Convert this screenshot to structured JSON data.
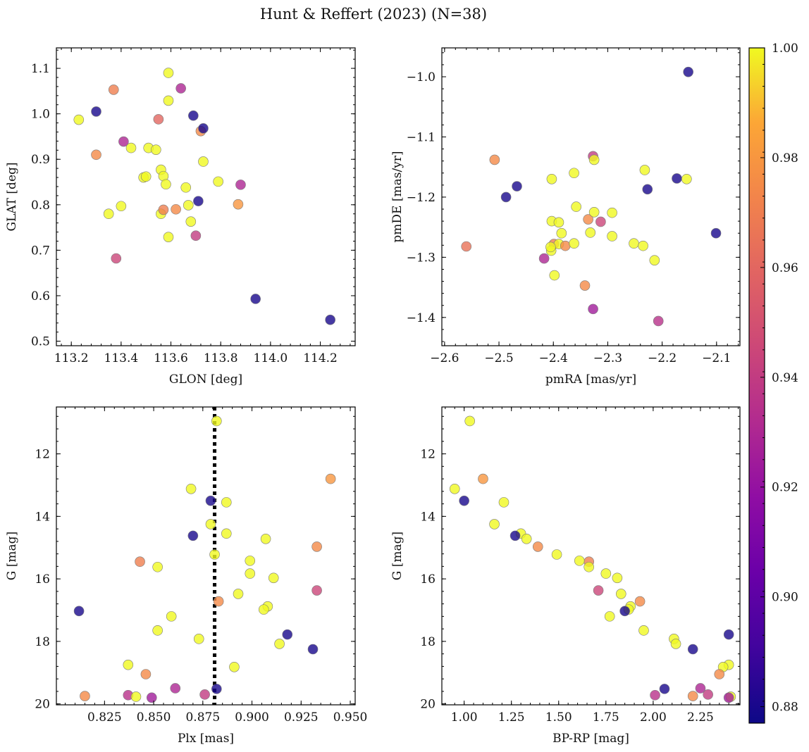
{
  "figure": {
    "title": "Hunt & Reffert (2023) (N=38)"
  },
  "colorbar": {
    "colormap": "plasma",
    "range": [
      0.877,
      1.0
    ],
    "ticks": [
      0.88,
      0.9,
      0.92,
      0.94,
      0.96,
      0.98,
      1.0
    ],
    "tick_labels": [
      "0.88",
      "0.90",
      "0.92",
      "0.94",
      "0.96",
      "0.98",
      "1.00"
    ]
  },
  "chart_data": [
    {
      "type": "scatter",
      "xlabel": "GLON [deg]",
      "ylabel": "GLAT [deg]",
      "xlim": [
        113.14,
        114.34
      ],
      "ylim": [
        0.49,
        1.145
      ],
      "xticks": [
        113.2,
        113.4,
        113.6,
        113.8,
        114.0,
        114.2
      ],
      "xtick_labels": [
        "113.2",
        "113.4",
        "113.6",
        "113.8",
        "114.0",
        "114.2"
      ],
      "yticks": [
        0.5,
        0.6,
        0.7,
        0.8,
        0.9,
        1.0,
        1.1
      ],
      "ytick_labels": [
        "0.5",
        "0.6",
        "0.7",
        "0.8",
        "0.9",
        "1.0",
        "1.1"
      ],
      "points": [
        {
          "x": 113.23,
          "y": 0.987,
          "c": 1.0
        },
        {
          "x": 113.3,
          "y": 1.005,
          "c": 0.88
        },
        {
          "x": 113.3,
          "y": 0.91,
          "c": 0.975
        },
        {
          "x": 113.37,
          "y": 1.053,
          "c": 0.97
        },
        {
          "x": 113.35,
          "y": 0.78,
          "c": 1.0
        },
        {
          "x": 113.4,
          "y": 0.797,
          "c": 1.0
        },
        {
          "x": 113.41,
          "y": 0.939,
          "c": 0.93
        },
        {
          "x": 113.38,
          "y": 0.682,
          "c": 0.945
        },
        {
          "x": 113.44,
          "y": 0.925,
          "c": 1.0
        },
        {
          "x": 113.49,
          "y": 0.86,
          "c": 1.0
        },
        {
          "x": 113.5,
          "y": 0.862,
          "c": 1.0
        },
        {
          "x": 113.51,
          "y": 0.925,
          "c": 1.0
        },
        {
          "x": 113.54,
          "y": 0.921,
          "c": 1.0
        },
        {
          "x": 113.55,
          "y": 0.988,
          "c": 0.96
        },
        {
          "x": 113.56,
          "y": 0.877,
          "c": 1.0
        },
        {
          "x": 113.57,
          "y": 0.863,
          "c": 1.0
        },
        {
          "x": 113.58,
          "y": 0.845,
          "c": 1.0
        },
        {
          "x": 113.56,
          "y": 0.78,
          "c": 1.0
        },
        {
          "x": 113.57,
          "y": 0.789,
          "c": 0.97
        },
        {
          "x": 113.59,
          "y": 1.09,
          "c": 1.0
        },
        {
          "x": 113.59,
          "y": 1.029,
          "c": 1.0
        },
        {
          "x": 113.59,
          "y": 0.729,
          "c": 1.0
        },
        {
          "x": 113.62,
          "y": 0.79,
          "c": 0.975
        },
        {
          "x": 113.64,
          "y": 1.056,
          "c": 0.93
        },
        {
          "x": 113.66,
          "y": 0.838,
          "c": 1.0
        },
        {
          "x": 113.67,
          "y": 0.799,
          "c": 1.0
        },
        {
          "x": 113.68,
          "y": 0.763,
          "c": 1.0
        },
        {
          "x": 113.69,
          "y": 0.996,
          "c": 0.88
        },
        {
          "x": 113.7,
          "y": 0.732,
          "c": 0.94
        },
        {
          "x": 113.71,
          "y": 0.808,
          "c": 0.88
        },
        {
          "x": 113.72,
          "y": 0.962,
          "c": 0.975
        },
        {
          "x": 113.73,
          "y": 0.968,
          "c": 0.88
        },
        {
          "x": 113.73,
          "y": 0.895,
          "c": 1.0
        },
        {
          "x": 113.79,
          "y": 0.851,
          "c": 1.0
        },
        {
          "x": 113.87,
          "y": 0.801,
          "c": 0.98
        },
        {
          "x": 113.88,
          "y": 0.844,
          "c": 0.93
        },
        {
          "x": 113.94,
          "y": 0.593,
          "c": 0.88
        },
        {
          "x": 114.24,
          "y": 0.547,
          "c": 0.88
        }
      ]
    },
    {
      "type": "scatter",
      "xlabel": "pmRA [mas/yr]",
      "ylabel": "pmDE [mas/yr]",
      "xlim": [
        -2.605,
        -2.057
      ],
      "ylim": [
        -1.447,
        -0.952
      ],
      "xticks": [
        -2.6,
        -2.5,
        -2.4,
        -2.3,
        -2.2,
        -2.1
      ],
      "xtick_labels": [
        "−2.6",
        "−2.5",
        "−2.4",
        "−2.3",
        "−2.2",
        "−2.1"
      ],
      "yticks": [
        -1.4,
        -1.3,
        -1.2,
        -1.1,
        -1.0
      ],
      "ytick_labels": [
        "−1.4",
        "−1.3",
        "−1.2",
        "−1.1",
        "−1.0"
      ],
      "points": [
        {
          "x": -2.152,
          "y": -0.992,
          "c": 0.88
        },
        {
          "x": -2.508,
          "y": -1.138,
          "c": 0.975
        },
        {
          "x": -2.56,
          "y": -1.282,
          "c": 0.965
        },
        {
          "x": -2.487,
          "y": -1.2,
          "c": 0.88
        },
        {
          "x": -2.467,
          "y": -1.182,
          "c": 0.88
        },
        {
          "x": -2.327,
          "y": -1.132,
          "c": 0.94
        },
        {
          "x": -2.325,
          "y": -1.138,
          "c": 1.0
        },
        {
          "x": -2.403,
          "y": -1.17,
          "c": 1.0
        },
        {
          "x": -2.362,
          "y": -1.16,
          "c": 1.0
        },
        {
          "x": -2.232,
          "y": -1.155,
          "c": 1.0
        },
        {
          "x": -2.227,
          "y": -1.187,
          "c": 0.88
        },
        {
          "x": -2.173,
          "y": -1.169,
          "c": 0.88
        },
        {
          "x": -2.155,
          "y": -1.17,
          "c": 1.0
        },
        {
          "x": -2.358,
          "y": -1.216,
          "c": 1.0
        },
        {
          "x": -2.403,
          "y": -1.24,
          "c": 1.0
        },
        {
          "x": -2.39,
          "y": -1.242,
          "c": 1.0
        },
        {
          "x": -2.336,
          "y": -1.237,
          "c": 0.975
        },
        {
          "x": -2.325,
          "y": -1.225,
          "c": 1.0
        },
        {
          "x": -2.292,
          "y": -1.226,
          "c": 1.0
        },
        {
          "x": -2.313,
          "y": -1.241,
          "c": 0.945
        },
        {
          "x": -2.385,
          "y": -1.26,
          "c": 1.0
        },
        {
          "x": -2.332,
          "y": -1.259,
          "c": 1.0
        },
        {
          "x": -2.292,
          "y": -1.265,
          "c": 1.0
        },
        {
          "x": -2.399,
          "y": -1.278,
          "c": 0.97
        },
        {
          "x": -2.39,
          "y": -1.278,
          "c": 1.0
        },
        {
          "x": -2.378,
          "y": -1.281,
          "c": 0.975
        },
        {
          "x": -2.362,
          "y": -1.277,
          "c": 1.0
        },
        {
          "x": -2.252,
          "y": -1.277,
          "c": 1.0
        },
        {
          "x": -2.235,
          "y": -1.281,
          "c": 1.0
        },
        {
          "x": -2.404,
          "y": -1.289,
          "c": 1.0
        },
        {
          "x": -2.417,
          "y": -1.302,
          "c": 0.93
        },
        {
          "x": -2.214,
          "y": -1.305,
          "c": 1.0
        },
        {
          "x": -2.101,
          "y": -1.26,
          "c": 0.88
        },
        {
          "x": -2.398,
          "y": -1.33,
          "c": 1.0
        },
        {
          "x": -2.342,
          "y": -1.347,
          "c": 0.975
        },
        {
          "x": -2.327,
          "y": -1.386,
          "c": 0.925
        },
        {
          "x": -2.207,
          "y": -1.406,
          "c": 0.935
        },
        {
          "x": -2.405,
          "y": -1.283,
          "c": 1.0
        }
      ]
    },
    {
      "type": "scatter",
      "xlabel": "Plx [mas]",
      "ylabel": "G [mag]",
      "xlim": [
        0.8005,
        0.9525
      ],
      "ylim": [
        20.03,
        10.5
      ],
      "y_inverted": true,
      "vline": 0.881,
      "xticks": [
        0.825,
        0.85,
        0.875,
        0.9,
        0.925,
        0.95
      ],
      "xtick_labels": [
        "0.825",
        "0.850",
        "0.875",
        "0.900",
        "0.925",
        "0.950"
      ],
      "yticks": [
        12,
        14,
        16,
        18,
        20
      ],
      "ytick_labels": [
        "12",
        "14",
        "16",
        "18",
        "20"
      ],
      "points": [
        {
          "x": 0.882,
          "y": 10.95,
          "c": 1.0
        },
        {
          "x": 0.94,
          "y": 12.8,
          "c": 0.98
        },
        {
          "x": 0.869,
          "y": 13.12,
          "c": 1.0
        },
        {
          "x": 0.879,
          "y": 13.5,
          "c": 0.88
        },
        {
          "x": 0.887,
          "y": 13.55,
          "c": 1.0
        },
        {
          "x": 0.879,
          "y": 14.25,
          "c": 1.0
        },
        {
          "x": 0.887,
          "y": 14.55,
          "c": 1.0
        },
        {
          "x": 0.87,
          "y": 14.62,
          "c": 0.88
        },
        {
          "x": 0.907,
          "y": 14.72,
          "c": 1.0
        },
        {
          "x": 0.933,
          "y": 14.97,
          "c": 0.975
        },
        {
          "x": 0.881,
          "y": 15.22,
          "c": 1.0
        },
        {
          "x": 0.843,
          "y": 15.45,
          "c": 0.97
        },
        {
          "x": 0.899,
          "y": 15.42,
          "c": 1.0
        },
        {
          "x": 0.852,
          "y": 15.62,
          "c": 1.0
        },
        {
          "x": 0.899,
          "y": 15.83,
          "c": 1.0
        },
        {
          "x": 0.911,
          "y": 15.97,
          "c": 1.0
        },
        {
          "x": 0.933,
          "y": 16.37,
          "c": 0.945
        },
        {
          "x": 0.893,
          "y": 16.48,
          "c": 1.0
        },
        {
          "x": 0.883,
          "y": 16.72,
          "c": 0.975
        },
        {
          "x": 0.908,
          "y": 16.88,
          "c": 1.0
        },
        {
          "x": 0.906,
          "y": 16.98,
          "c": 1.0
        },
        {
          "x": 0.812,
          "y": 17.03,
          "c": 0.88
        },
        {
          "x": 0.859,
          "y": 17.2,
          "c": 1.0
        },
        {
          "x": 0.852,
          "y": 17.65,
          "c": 1.0
        },
        {
          "x": 0.918,
          "y": 17.78,
          "c": 0.88
        },
        {
          "x": 0.873,
          "y": 17.92,
          "c": 1.0
        },
        {
          "x": 0.914,
          "y": 18.08,
          "c": 1.0
        },
        {
          "x": 0.931,
          "y": 18.25,
          "c": 0.88
        },
        {
          "x": 0.837,
          "y": 18.75,
          "c": 1.0
        },
        {
          "x": 0.891,
          "y": 18.82,
          "c": 1.0
        },
        {
          "x": 0.846,
          "y": 19.05,
          "c": 0.975
        },
        {
          "x": 0.861,
          "y": 19.5,
          "c": 0.93
        },
        {
          "x": 0.882,
          "y": 19.52,
          "c": 0.88
        },
        {
          "x": 0.876,
          "y": 19.7,
          "c": 0.94
        },
        {
          "x": 0.815,
          "y": 19.75,
          "c": 0.975
        },
        {
          "x": 0.837,
          "y": 19.72,
          "c": 0.935
        },
        {
          "x": 0.841,
          "y": 19.77,
          "c": 1.0
        },
        {
          "x": 0.849,
          "y": 19.8,
          "c": 0.925
        }
      ]
    },
    {
      "type": "scatter",
      "xlabel": "BP-RP [mag]",
      "ylabel": "G [mag]",
      "xlim": [
        0.882,
        2.459
      ],
      "ylim": [
        20.03,
        10.5
      ],
      "y_inverted": true,
      "xticks": [
        1.0,
        1.25,
        1.5,
        1.75,
        2.0,
        2.25
      ],
      "xtick_labels": [
        "1.00",
        "1.25",
        "1.50",
        "1.75",
        "2.00",
        "2.25"
      ],
      "yticks": [
        12,
        14,
        16,
        18,
        20
      ],
      "ytick_labels": [
        "12",
        "14",
        "16",
        "18",
        "20"
      ],
      "points": [
        {
          "x": 1.03,
          "y": 10.95,
          "c": 1.0
        },
        {
          "x": 1.1,
          "y": 12.8,
          "c": 0.98
        },
        {
          "x": 0.95,
          "y": 13.12,
          "c": 1.0
        },
        {
          "x": 1.0,
          "y": 13.5,
          "c": 0.88
        },
        {
          "x": 1.21,
          "y": 13.55,
          "c": 1.0
        },
        {
          "x": 1.16,
          "y": 14.25,
          "c": 1.0
        },
        {
          "x": 1.3,
          "y": 14.55,
          "c": 1.0
        },
        {
          "x": 1.27,
          "y": 14.62,
          "c": 0.88
        },
        {
          "x": 1.33,
          "y": 14.72,
          "c": 1.0
        },
        {
          "x": 1.39,
          "y": 14.97,
          "c": 0.975
        },
        {
          "x": 1.49,
          "y": 15.22,
          "c": 1.0
        },
        {
          "x": 1.66,
          "y": 15.45,
          "c": 0.97
        },
        {
          "x": 1.61,
          "y": 15.42,
          "c": 1.0
        },
        {
          "x": 1.66,
          "y": 15.62,
          "c": 1.0
        },
        {
          "x": 1.75,
          "y": 15.83,
          "c": 1.0
        },
        {
          "x": 1.81,
          "y": 15.97,
          "c": 1.0
        },
        {
          "x": 1.71,
          "y": 16.37,
          "c": 0.945
        },
        {
          "x": 1.83,
          "y": 16.48,
          "c": 1.0
        },
        {
          "x": 1.93,
          "y": 16.72,
          "c": 0.975
        },
        {
          "x": 1.88,
          "y": 16.88,
          "c": 1.0
        },
        {
          "x": 1.87,
          "y": 16.98,
          "c": 1.0
        },
        {
          "x": 1.85,
          "y": 17.03,
          "c": 0.88
        },
        {
          "x": 1.77,
          "y": 17.2,
          "c": 1.0
        },
        {
          "x": 1.95,
          "y": 17.65,
          "c": 1.0
        },
        {
          "x": 2.4,
          "y": 17.78,
          "c": 0.88
        },
        {
          "x": 2.11,
          "y": 17.92,
          "c": 1.0
        },
        {
          "x": 2.12,
          "y": 18.08,
          "c": 1.0
        },
        {
          "x": 2.21,
          "y": 18.25,
          "c": 0.88
        },
        {
          "x": 2.4,
          "y": 18.75,
          "c": 1.0
        },
        {
          "x": 2.37,
          "y": 18.82,
          "c": 1.0
        },
        {
          "x": 2.35,
          "y": 19.05,
          "c": 0.975
        },
        {
          "x": 2.25,
          "y": 19.5,
          "c": 0.93
        },
        {
          "x": 2.06,
          "y": 19.52,
          "c": 0.88
        },
        {
          "x": 2.29,
          "y": 19.7,
          "c": 0.94
        },
        {
          "x": 2.21,
          "y": 19.75,
          "c": 0.975
        },
        {
          "x": 2.01,
          "y": 19.72,
          "c": 0.935
        },
        {
          "x": 2.41,
          "y": 19.77,
          "c": 1.0
        },
        {
          "x": 2.4,
          "y": 19.8,
          "c": 0.925
        }
      ]
    }
  ]
}
